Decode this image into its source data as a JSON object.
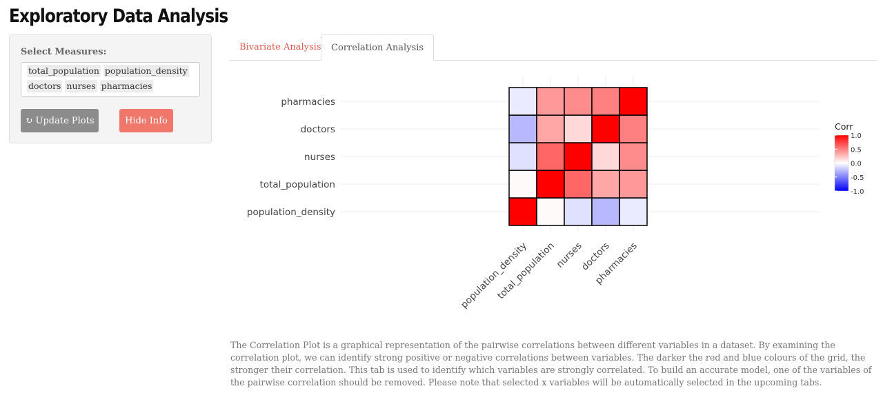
{
  "header": {
    "title": "Exploratory Data Analysis"
  },
  "sidebar": {
    "select_label": "Select Measures:",
    "selected_measures": [
      "total_population",
      "population_density",
      "doctors",
      "nurses",
      "pharmacies"
    ],
    "update_button": {
      "icon": "refresh-icon",
      "label": "Update Plots"
    },
    "hide_button": {
      "label": "Hide Info"
    },
    "colors": {
      "update_bg": "#8c8c8c",
      "hide_bg": "#f1776a"
    }
  },
  "tabs": [
    {
      "label": "Bivariate Analysis",
      "active": false
    },
    {
      "label": "Correlation Analysis",
      "active": true
    }
  ],
  "chart_data": {
    "type": "heatmap",
    "x_categories": [
      "population_density",
      "total_population",
      "nurses",
      "doctors",
      "pharmacies"
    ],
    "y_categories": [
      "population_density",
      "total_population",
      "nurses",
      "doctors",
      "pharmacies"
    ],
    "values": [
      [
        1.0,
        0.02,
        -0.12,
        -0.28,
        -0.08
      ],
      [
        0.02,
        1.0,
        0.6,
        0.35,
        0.4
      ],
      [
        -0.12,
        0.6,
        1.0,
        0.15,
        0.45
      ],
      [
        -0.28,
        0.35,
        0.15,
        1.0,
        0.5
      ],
      [
        -0.08,
        0.4,
        0.45,
        0.5,
        1.0
      ]
    ],
    "legend": {
      "title": "Corr",
      "ticks": [
        "1.0",
        "0.5",
        "0.0",
        "-0.5",
        "-1.0"
      ],
      "range": [
        -1,
        1
      ],
      "position": "right"
    },
    "colors": {
      "low": "#0000ff",
      "mid": "#ffffff",
      "high": "#ff0000"
    }
  },
  "description": "The Correlation Plot is a graphical representation of the pairwise correlations between different variables in a dataset. By examining the correlation plot, we can identify strong positive or negative correlations between variables. The darker the red and blue colours of the grid, the stronger their correlation. This tab is used to identify which variables are strongly correlated. To build an accurate model, one of the variables of the pairwise correlation should be removed. Please note that selected x variables will be automatically selected in the upcoming tabs."
}
